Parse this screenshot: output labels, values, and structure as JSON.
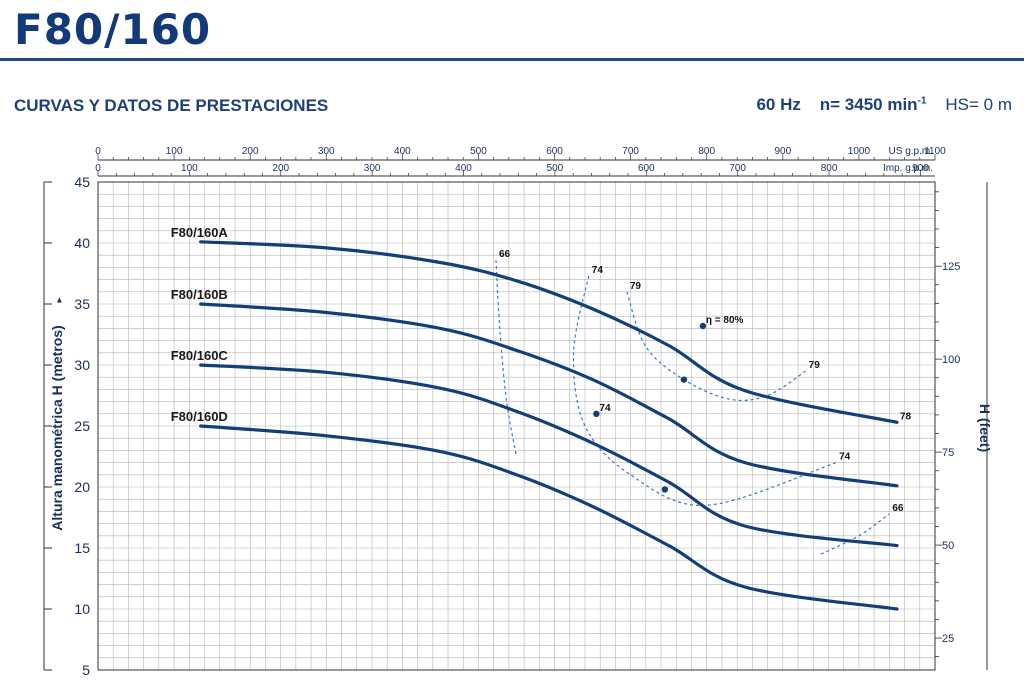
{
  "page": {
    "title": "F80/160",
    "section_heading": "CURVAS Y DATOS DE PRESTACIONES",
    "frequency": "60 Hz",
    "speed_prefix": "n= 3450 min",
    "speed_sup": "-1",
    "hs": "HS= 0 m"
  },
  "colors": {
    "curve": "#123e7a",
    "efficiency": "#3a78c0",
    "grid": "#b5b5b5",
    "text": "#1a2e5c"
  },
  "chart_data": {
    "type": "line",
    "ylabel": "Altura manométrica H  (metros)",
    "ylabel_right": "H (feet)",
    "ylim": [
      5,
      45
    ],
    "yticks": [
      45,
      40,
      35,
      30,
      25,
      20,
      15,
      10,
      5
    ],
    "xlim_us_gpm": [
      0,
      1100
    ],
    "x_top_us": {
      "unit": "US g.p.m.",
      "ticks": [
        0,
        100,
        200,
        300,
        400,
        500,
        600,
        700,
        800,
        900,
        1000,
        1100
      ]
    },
    "x_top_imp": {
      "unit": "Imp. g.p.m.",
      "ticks": [
        0,
        100,
        200,
        300,
        400,
        500,
        600,
        700,
        800,
        900
      ]
    },
    "y_right_feet": [
      125,
      100,
      75,
      50,
      25
    ],
    "grid": true,
    "series": [
      {
        "name": "F80/160A",
        "x": [
          135,
          300,
          450,
          550,
          650,
          750,
          850,
          1050
        ],
        "y": [
          40.1,
          39.6,
          38.4,
          36.9,
          34.6,
          31.6,
          27.9,
          25.3
        ]
      },
      {
        "name": "F80/160B",
        "x": [
          135,
          300,
          450,
          550,
          650,
          750,
          850,
          1050
        ],
        "y": [
          35.0,
          34.3,
          33.0,
          31.2,
          28.8,
          25.6,
          22.0,
          20.1
        ]
      },
      {
        "name": "F80/160C",
        "x": [
          135,
          300,
          450,
          550,
          650,
          750,
          850,
          1050
        ],
        "y": [
          30.0,
          29.4,
          28.1,
          26.2,
          23.6,
          20.4,
          16.8,
          15.2
        ]
      },
      {
        "name": "F80/160D",
        "x": [
          135,
          300,
          450,
          550,
          650,
          750,
          850,
          1050
        ],
        "y": [
          25.0,
          24.2,
          22.9,
          21.0,
          18.4,
          15.2,
          11.8,
          10.0
        ]
      }
    ],
    "efficiency_curves": [
      {
        "label": "66",
        "x": [
          523,
          528,
          537,
          550
        ],
        "y": [
          38.6,
          33.0,
          27.0,
          22.5
        ]
      },
      {
        "label": "74",
        "x": [
          645,
          625,
          640,
          700,
          800,
          970
        ],
        "y": [
          37.3,
          31.0,
          25.0,
          21.0,
          18.5,
          22.0
        ]
      },
      {
        "label": "79",
        "x": [
          695,
          720,
          770,
          830,
          880,
          930
        ],
        "y": [
          36.0,
          31.5,
          28.8,
          27.2,
          27.5,
          29.5
        ]
      },
      {
        "label": "66",
        "x": [
          950,
          1000,
          1040
        ],
        "y": [
          14.5,
          16.0,
          17.8
        ]
      }
    ],
    "points": [
      {
        "label": "66",
        "x": 523,
        "y": 38.6
      },
      {
        "label": "74",
        "x": 645,
        "y": 37.3
      },
      {
        "label": "79",
        "x": 695,
        "y": 36.0
      },
      {
        "label": "η = 80%",
        "x": 795,
        "y": 33.2
      },
      {
        "label": "79",
        "x": 930,
        "y": 29.5
      },
      {
        "label": "78",
        "x": 1050,
        "y": 25.3
      },
      {
        "label": "74",
        "x": 655,
        "y": 26.0
      },
      {
        "label": "74",
        "x": 970,
        "y": 22.0
      },
      {
        "label": "66",
        "x": 1040,
        "y": 17.8
      }
    ],
    "markers": [
      {
        "x": 795,
        "y": 33.2
      },
      {
        "x": 770,
        "y": 28.8
      },
      {
        "x": 655,
        "y": 26.0
      },
      {
        "x": 745,
        "y": 19.8
      }
    ]
  }
}
